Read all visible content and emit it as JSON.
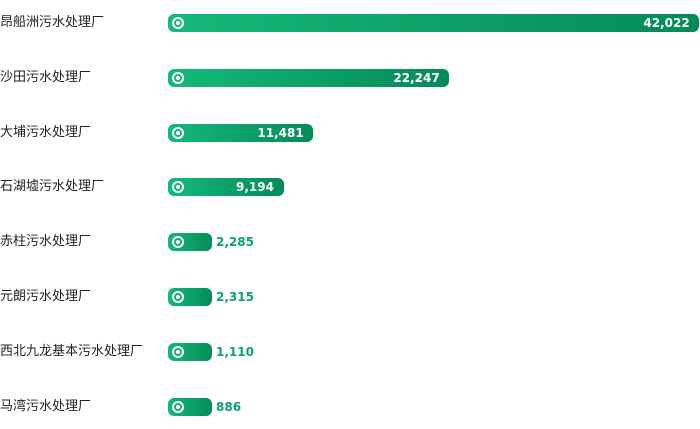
{
  "chart_data": {
    "type": "bar",
    "orientation": "horizontal",
    "categories": [
      "昂船洲污水处理厂",
      "沙田污水处理厂",
      "大埔污水处理厂",
      "石湖墟污水处理厂",
      "赤柱污水处理厂",
      "元朗污水处理厂",
      "西北九龙基本污水处理厂",
      "马湾污水处理厂"
    ],
    "values": [
      42022,
      22247,
      11481,
      9194,
      2285,
      2315,
      1110,
      886
    ],
    "value_labels": [
      "42,022",
      "22,247",
      "11,481",
      "9,194",
      "2,285",
      "2,315",
      "1,110",
      "886"
    ],
    "title": "",
    "xlabel": "",
    "ylabel": "",
    "xlim": [
      0,
      42022
    ],
    "grid": false,
    "legend": "none",
    "colors": {
      "bar_start": "#14b97a",
      "bar_end": "#058a57",
      "value_outside": "#0ea06a",
      "value_inside": "#ffffff",
      "category_text": "#222222"
    },
    "marker_icon": "target-icon"
  }
}
